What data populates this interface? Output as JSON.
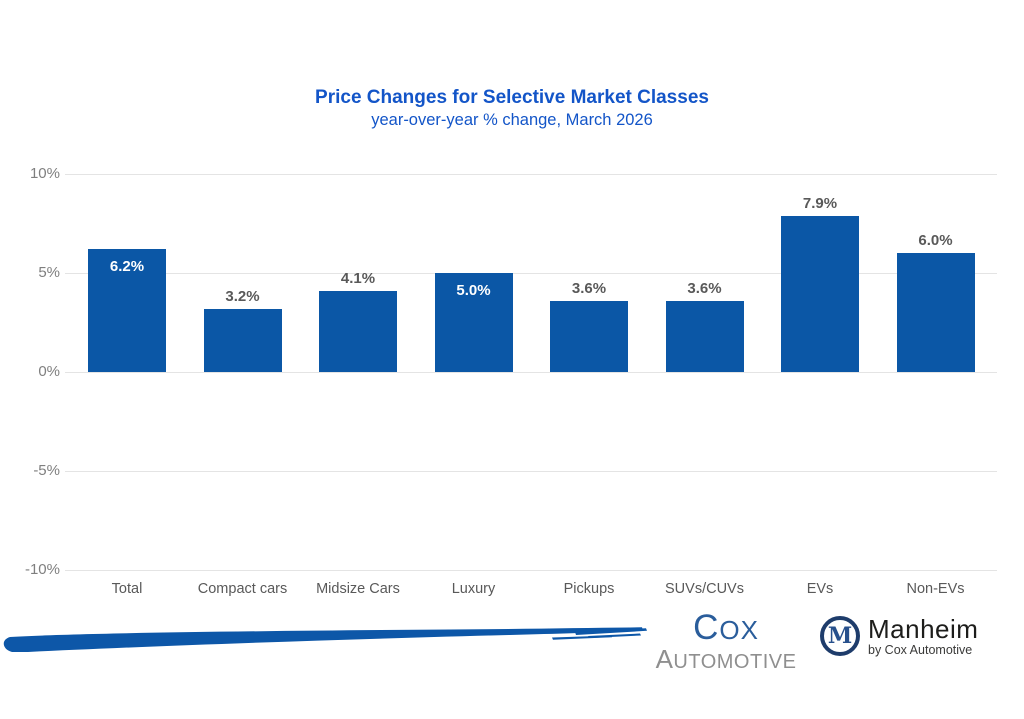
{
  "title": "Price Changes for Selective Market Classes",
  "subtitle": "year-over-year % change, March 2026",
  "chart_data": {
    "type": "bar",
    "title": "Price Changes for Selective Market Classes",
    "subtitle": "year-over-year % change, March 2026",
    "categories": [
      "Total",
      "Compact cars",
      "Midsize Cars",
      "Luxury",
      "Pickups",
      "SUVs/CUVs",
      "EVs",
      "Non-EVs"
    ],
    "values": [
      6.2,
      3.2,
      4.1,
      5.0,
      3.6,
      3.6,
      7.9,
      6.0
    ],
    "data_labels": [
      "6.2%",
      "3.2%",
      "4.1%",
      "5.0%",
      "3.6%",
      "3.6%",
      "7.9%",
      "6.0%"
    ],
    "data_label_position": [
      "inside",
      "above",
      "above",
      "inside",
      "above",
      "above",
      "above",
      "above"
    ],
    "xlabel": "",
    "ylabel": "",
    "ylim": [
      -10,
      10
    ],
    "y_ticks": [
      "10%",
      "5%",
      "0%",
      "-5%",
      "-10%"
    ],
    "y_tick_values": [
      10,
      5,
      0,
      -5,
      -10
    ],
    "grid": true,
    "legend": false
  },
  "colors": {
    "title_text": "#1355c8",
    "bar_fill": "#0b57a6",
    "y_tick_text": "#7f7f7f",
    "label_text": "#595959",
    "gridline": "#e4e4e4",
    "brush_stroke": "#0d57a8",
    "cox_blue": "#2a5d9b",
    "cox_gray": "#8f8f8f",
    "manheim_navy": "#1e3c6b"
  },
  "footer": {
    "cox_logo": {
      "line1": "Cox",
      "line2": "Automotive"
    },
    "manheim_logo": {
      "monogram": "M",
      "name": "Manheim",
      "tagline": "by Cox Automotive"
    }
  }
}
